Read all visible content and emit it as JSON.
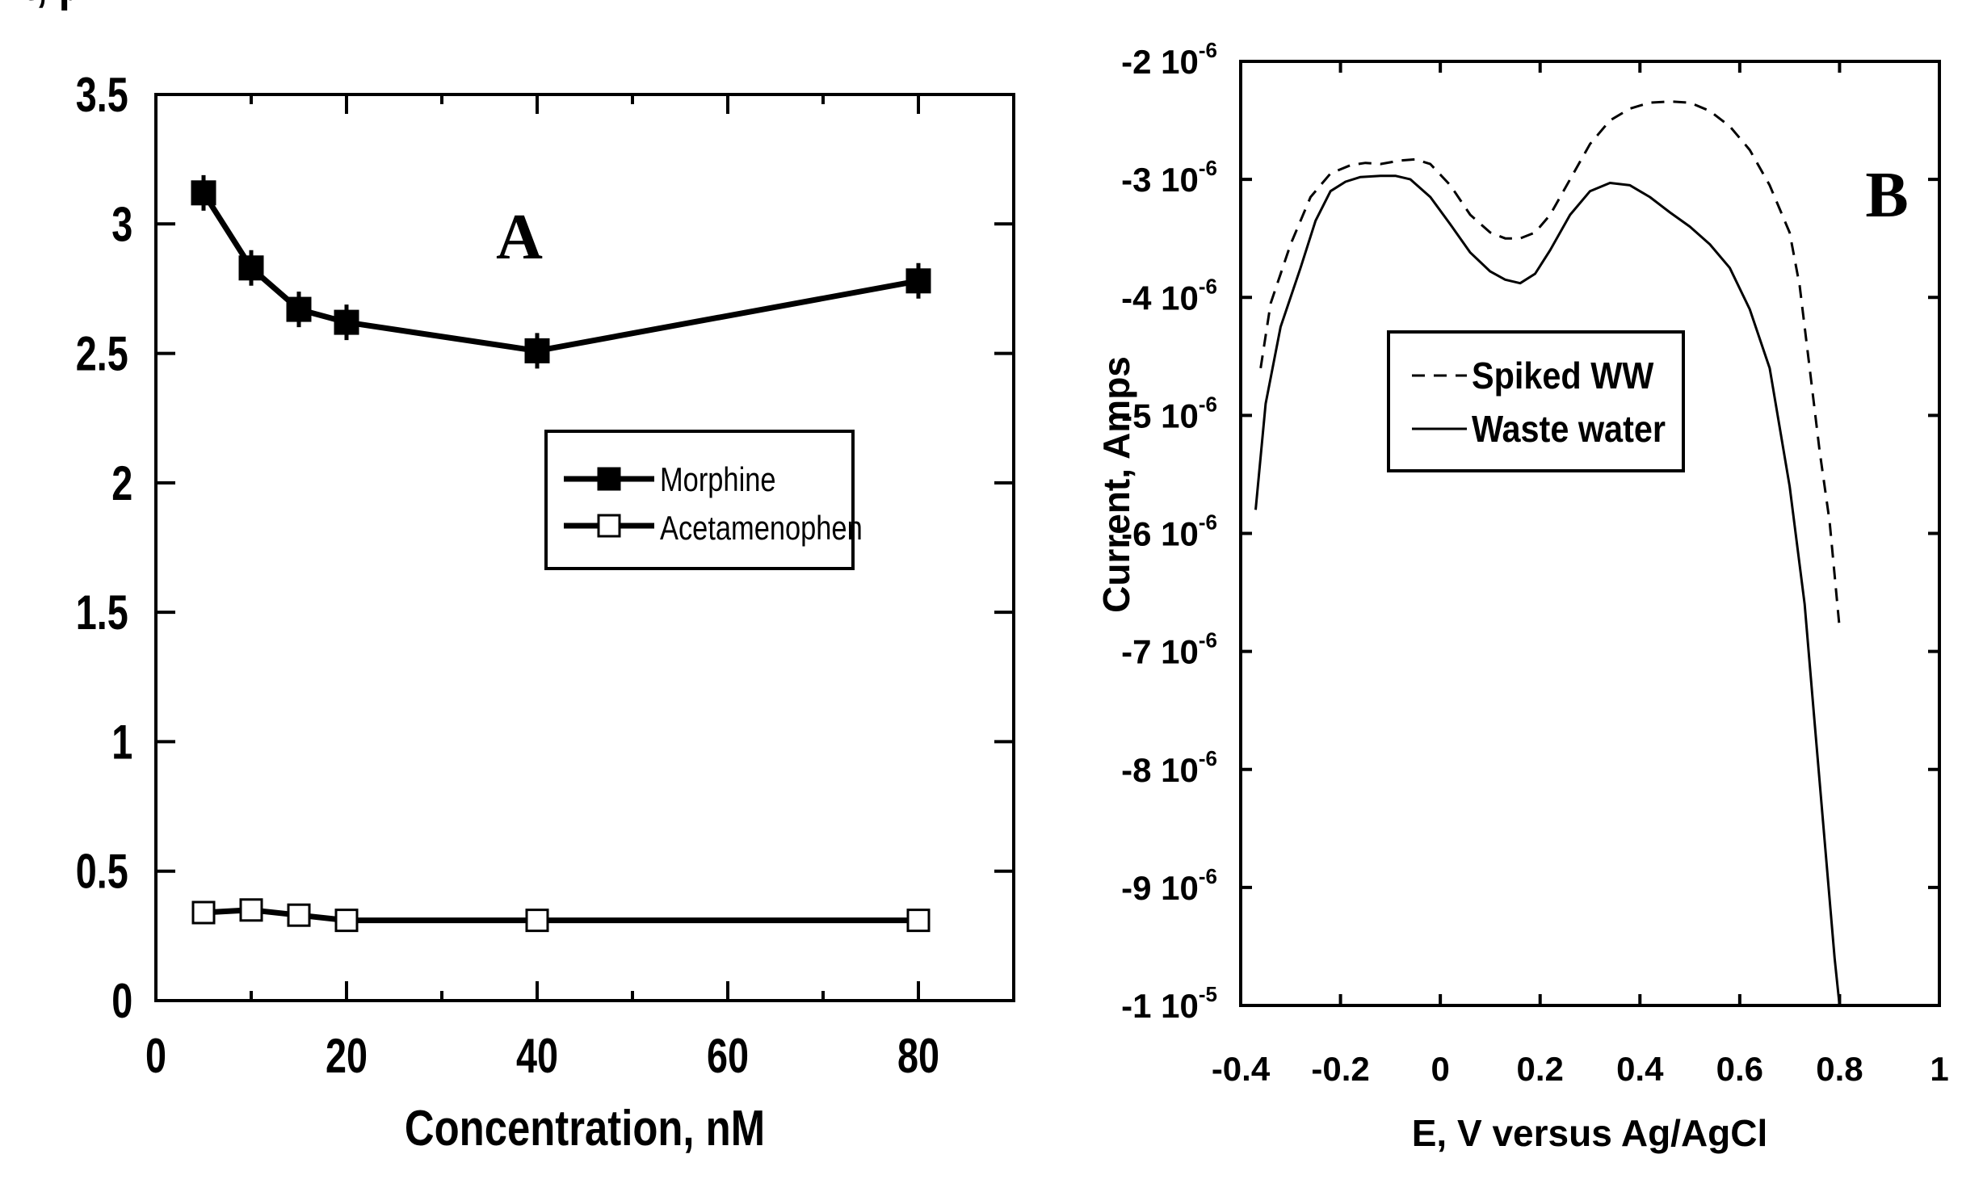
{
  "chart_data": [
    {
      "panel": "A",
      "type": "line",
      "xlabel": "Concentration, nM",
      "ylabel": "Current, µA",
      "xlim": [
        0,
        90
      ],
      "ylim": [
        0,
        3.5
      ],
      "xticks": [
        "0",
        "20",
        "40",
        "60",
        "80"
      ],
      "yticks": [
        "0",
        "0.5",
        "1",
        "1.5",
        "2",
        "2.5",
        "3",
        "3.5"
      ],
      "series": [
        {
          "name": "Morphine",
          "marker": "filled-square",
          "x": [
            5,
            10,
            15,
            20,
            40,
            80
          ],
          "values": [
            3.12,
            2.83,
            2.67,
            2.62,
            2.51,
            2.78
          ]
        },
        {
          "name": "Acetamenophen",
          "marker": "open-square",
          "x": [
            5,
            10,
            15,
            20,
            40,
            80
          ],
          "values": [
            0.34,
            0.35,
            0.33,
            0.31,
            0.31,
            0.31
          ]
        }
      ],
      "legend_position": "center-right"
    },
    {
      "panel": "B",
      "type": "line",
      "xlabel": "E, V versus Ag/AgCl",
      "ylabel": "Current, Amps",
      "xlim": [
        -0.4,
        1
      ],
      "ylim": [
        -1e-05,
        -2e-06
      ],
      "xticks": [
        "-0.4",
        "-0.2",
        "0",
        "0.2",
        "0.4",
        "0.6",
        "0.8",
        "1"
      ],
      "yticks": [
        {
          "mantissa": "-2",
          "base": "10",
          "exp": "-6"
        },
        {
          "mantissa": "-3",
          "base": "10",
          "exp": "-6"
        },
        {
          "mantissa": "-4",
          "base": "10",
          "exp": "-6"
        },
        {
          "mantissa": "-5",
          "base": "10",
          "exp": "-6"
        },
        {
          "mantissa": "-6",
          "base": "10",
          "exp": "-6"
        },
        {
          "mantissa": "-7",
          "base": "10",
          "exp": "-6"
        },
        {
          "mantissa": "-8",
          "base": "10",
          "exp": "-6"
        },
        {
          "mantissa": "-9",
          "base": "10",
          "exp": "-6"
        },
        {
          "mantissa": "-1",
          "base": "10",
          "exp": "-5"
        }
      ],
      "series": [
        {
          "name": "Spiked WW",
          "style": "dashed",
          "x": [
            -0.36,
            -0.34,
            -0.3,
            -0.26,
            -0.22,
            -0.18,
            -0.15,
            -0.12,
            -0.08,
            -0.05,
            -0.02,
            0.02,
            0.06,
            0.1,
            0.13,
            0.16,
            0.19,
            0.22,
            0.26,
            0.3,
            0.34,
            0.38,
            0.42,
            0.46,
            0.5,
            0.54,
            0.58,
            0.62,
            0.66,
            0.7,
            0.72,
            0.74,
            0.76,
            0.78,
            0.8
          ],
          "values": [
            -4.6e-06,
            -4.05e-06,
            -3.55e-06,
            -3.15e-06,
            -2.95e-06,
            -2.88e-06,
            -2.86e-06,
            -2.87e-06,
            -2.84e-06,
            -2.83e-06,
            -2.87e-06,
            -3.05e-06,
            -3.3e-06,
            -3.45e-06,
            -3.5e-06,
            -3.5e-06,
            -3.45e-06,
            -3.3e-06,
            -3e-06,
            -2.7e-06,
            -2.5e-06,
            -2.4e-06,
            -2.35e-06,
            -2.34e-06,
            -2.35e-06,
            -2.42e-06,
            -2.55e-06,
            -2.75e-06,
            -3.05e-06,
            -3.45e-06,
            -3.9e-06,
            -4.6e-06,
            -5.3e-06,
            -5.9e-06,
            -6.8e-06
          ]
        },
        {
          "name": "Waste water",
          "style": "solid",
          "x": [
            -0.37,
            -0.35,
            -0.32,
            -0.28,
            -0.25,
            -0.22,
            -0.19,
            -0.16,
            -0.12,
            -0.09,
            -0.06,
            -0.02,
            0.02,
            0.06,
            0.1,
            0.13,
            0.16,
            0.19,
            0.22,
            0.26,
            0.3,
            0.34,
            0.38,
            0.42,
            0.46,
            0.5,
            0.54,
            0.58,
            0.62,
            0.66,
            0.7,
            0.73,
            0.75,
            0.77,
            0.79,
            0.8
          ],
          "values": [
            -5.8e-06,
            -4.9e-06,
            -4.25e-06,
            -3.75e-06,
            -3.35e-06,
            -3.1e-06,
            -3.02e-06,
            -2.98e-06,
            -2.97e-06,
            -2.97e-06,
            -3e-06,
            -3.15e-06,
            -3.38e-06,
            -3.62e-06,
            -3.78e-06,
            -3.85e-06,
            -3.88e-06,
            -3.8e-06,
            -3.6e-06,
            -3.3e-06,
            -3.1e-06,
            -3.03e-06,
            -3.05e-06,
            -3.15e-06,
            -3.28e-06,
            -3.4e-06,
            -3.55e-06,
            -3.75e-06,
            -4.1e-06,
            -4.6e-06,
            -5.6e-06,
            -6.6e-06,
            -7.6e-06,
            -8.6e-06,
            -9.6e-06,
            -1e-05
          ]
        }
      ],
      "legend_position": "center"
    }
  ]
}
